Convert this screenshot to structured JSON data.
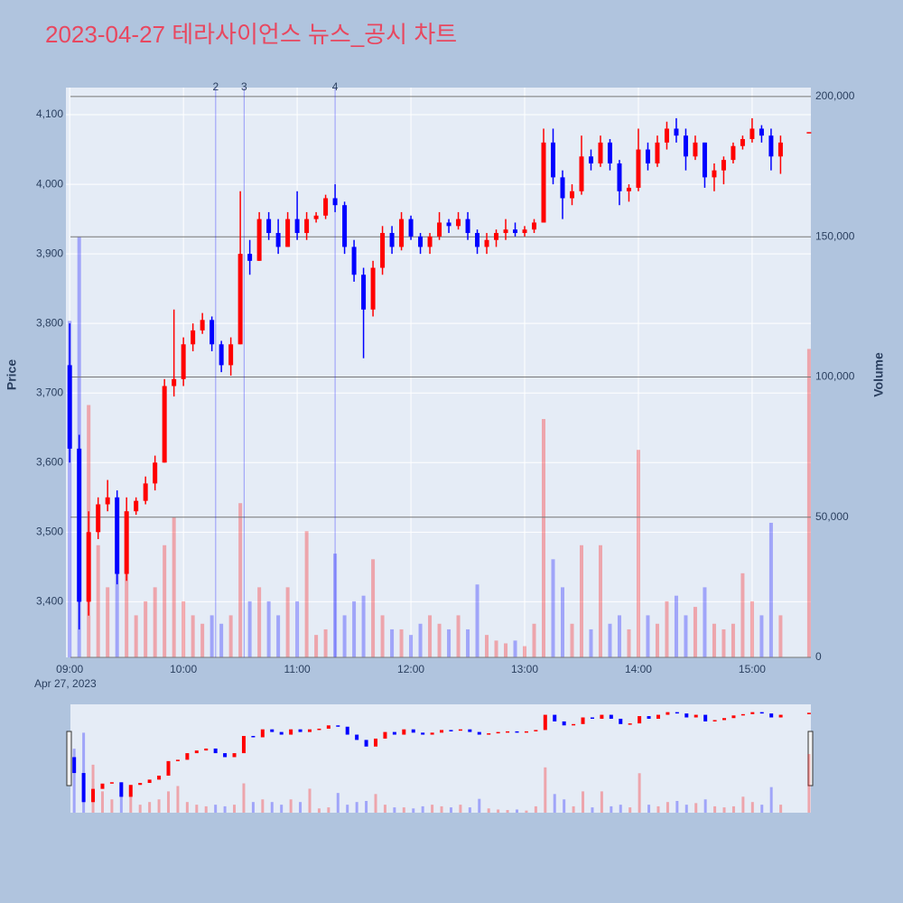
{
  "chart_data": {
    "type": "candlestick",
    "title": "2023-04-27 테라사이언스 뉴스_공시 차트",
    "y_label": "Price",
    "y2_label": "Volume",
    "date": "Apr 27, 2023",
    "increasing_color": "#ff0000",
    "decreasing_color": "#0000ff",
    "increasing_volume_color": "rgba(255,0,0,0.3)",
    "decreasing_volume_color": "rgba(0,0,255,0.3)",
    "x": [
      "09:00",
      "09:05",
      "09:10",
      "09:15",
      "09:20",
      "09:25",
      "09:30",
      "09:35",
      "09:40",
      "09:45",
      "09:50",
      "09:55",
      "10:00",
      "10:05",
      "10:10",
      "10:15",
      "10:20",
      "10:25",
      "10:30",
      "10:35",
      "10:40",
      "10:45",
      "10:50",
      "10:55",
      "11:00",
      "11:05",
      "11:10",
      "11:15",
      "11:20",
      "11:25",
      "11:30",
      "11:35",
      "11:40",
      "11:45",
      "11:50",
      "11:55",
      "12:00",
      "12:05",
      "12:10",
      "12:15",
      "12:20",
      "12:25",
      "12:30",
      "12:35",
      "12:40",
      "12:45",
      "12:50",
      "12:55",
      "13:00",
      "13:05",
      "13:10",
      "13:15",
      "13:20",
      "13:25",
      "13:30",
      "13:35",
      "13:40",
      "13:45",
      "13:50",
      "13:55",
      "14:00",
      "14:05",
      "14:10",
      "14:15",
      "14:20",
      "14:25",
      "14:30",
      "14:35",
      "14:40",
      "14:45",
      "14:50",
      "14:55",
      "15:00",
      "15:05",
      "15:10",
      "15:15",
      "15:30"
    ],
    "open": [
      3740,
      3620,
      3400,
      3500,
      3540,
      3550,
      3440,
      3530,
      3545,
      3570,
      3600,
      3710,
      3720,
      3770,
      3790,
      3805,
      3770,
      3740,
      3770,
      3900,
      3890,
      3950,
      3930,
      3910,
      3950,
      3930,
      3950,
      3955,
      3980,
      3970,
      3910,
      3870,
      3820,
      3880,
      3930,
      3910,
      3950,
      3925,
      3910,
      3925,
      3945,
      3940,
      3950,
      3930,
      3910,
      3920,
      3930,
      3935,
      3930,
      3935,
      3945,
      4060,
      4010,
      3980,
      3990,
      4040,
      4030,
      4060,
      4030,
      3990,
      3995,
      4050,
      4030,
      4060,
      4080,
      4070,
      4040,
      4060,
      4010,
      4020,
      4035,
      4055,
      4065,
      4080,
      4070,
      4040,
      4075
    ],
    "high": [
      3800,
      3640,
      3530,
      3550,
      3575,
      3560,
      3550,
      3550,
      3580,
      3610,
      3720,
      3820,
      3780,
      3800,
      3815,
      3810,
      3775,
      3780,
      3990,
      3920,
      3960,
      3960,
      3950,
      3960,
      3990,
      3960,
      3960,
      3985,
      4000,
      3975,
      3920,
      3880,
      3890,
      3940,
      3940,
      3960,
      3955,
      3930,
      3930,
      3960,
      3950,
      3960,
      3960,
      3935,
      3930,
      3935,
      3950,
      3945,
      3940,
      3950,
      4080,
      4080,
      4020,
      4000,
      4070,
      4050,
      4070,
      4065,
      4035,
      4000,
      4080,
      4060,
      4070,
      4090,
      4095,
      4080,
      4070,
      4060,
      4030,
      4040,
      4060,
      4070,
      4095,
      4085,
      4080,
      4070,
      4075
    ],
    "low": [
      3600,
      3360,
      3380,
      3490,
      3530,
      3425,
      3430,
      3525,
      3540,
      3560,
      3600,
      3695,
      3710,
      3760,
      3785,
      3760,
      3730,
      3725,
      3770,
      3870,
      3890,
      3920,
      3900,
      3910,
      3920,
      3920,
      3945,
      3950,
      3960,
      3900,
      3860,
      3750,
      3810,
      3870,
      3900,
      3905,
      3920,
      3900,
      3900,
      3920,
      3930,
      3935,
      3920,
      3900,
      3900,
      3910,
      3920,
      3925,
      3925,
      3930,
      3945,
      4000,
      3950,
      3970,
      3985,
      4020,
      4025,
      4020,
      3970,
      3975,
      3990,
      4020,
      4025,
      4050,
      4060,
      4020,
      4035,
      3995,
      3990,
      4000,
      4030,
      4050,
      4060,
      4060,
      4020,
      4015,
      4075
    ],
    "close": [
      3620,
      3400,
      3500,
      3540,
      3550,
      3440,
      3530,
      3545,
      3570,
      3600,
      3710,
      3720,
      3770,
      3790,
      3805,
      3770,
      3740,
      3770,
      3900,
      3890,
      3950,
      3930,
      3910,
      3950,
      3930,
      3950,
      3955,
      3980,
      3970,
      3910,
      3870,
      3820,
      3880,
      3930,
      3910,
      3950,
      3925,
      3910,
      3925,
      3945,
      3940,
      3950,
      3930,
      3910,
      3920,
      3930,
      3935,
      3930,
      3935,
      3945,
      4060,
      4010,
      3980,
      3990,
      4040,
      4030,
      4060,
      4030,
      3990,
      3995,
      4050,
      4030,
      4060,
      4080,
      4070,
      4040,
      4060,
      4010,
      4020,
      4035,
      4055,
      4065,
      4080,
      4070,
      4040,
      4060,
      4075
    ],
    "volume": [
      120000,
      150000,
      90000,
      40000,
      25000,
      40000,
      30000,
      15000,
      20000,
      25000,
      40000,
      50000,
      20000,
      15000,
      12000,
      15000,
      12000,
      15000,
      55000,
      20000,
      25000,
      20000,
      15000,
      25000,
      20000,
      45000,
      8000,
      10000,
      37000,
      15000,
      20000,
      22000,
      35000,
      15000,
      10000,
      10000,
      8000,
      12000,
      15000,
      12000,
      10000,
      15000,
      10000,
      26000,
      8000,
      6000,
      5000,
      6000,
      4000,
      12000,
      85000,
      35000,
      25000,
      12000,
      40000,
      10000,
      40000,
      12000,
      15000,
      10000,
      74000,
      15000,
      12000,
      20000,
      22000,
      15000,
      18000,
      25000,
      12000,
      10000,
      12000,
      30000,
      20000,
      15000,
      48000,
      15000,
      110000
    ],
    "xlim": [
      "08:58",
      "15:31"
    ],
    "xticks": [
      "09:00",
      "10:00",
      "11:00",
      "12:00",
      "13:00",
      "14:00",
      "15:00"
    ],
    "ylim": [
      3320,
      4139
    ],
    "yticks": [
      {
        "value": 3400,
        "label": "3,400"
      },
      {
        "value": 3500,
        "label": "3,500"
      },
      {
        "value": 3600,
        "label": "3,600"
      },
      {
        "value": 3700,
        "label": "3,700"
      },
      {
        "value": 3800,
        "label": "3,800"
      },
      {
        "value": 3900,
        "label": "3,900"
      },
      {
        "value": 4000,
        "label": "4,000"
      },
      {
        "value": 4100,
        "label": "4,100"
      }
    ],
    "y2lim": [
      0,
      203200
    ],
    "y2ticks": [
      0,
      {
        "value": 50000,
        "label": "50,000"
      },
      {
        "value": 100000,
        "label": "100,000"
      },
      {
        "value": 150000,
        "label": "150,000"
      },
      {
        "value": 200000,
        "label": "200,000"
      }
    ],
    "annotations": [
      {
        "x": "10:17",
        "text": "2"
      },
      {
        "x": "10:32",
        "text": "3"
      },
      {
        "x": "11:20",
        "text": "4"
      }
    ],
    "grid": true,
    "rangeslider": true
  }
}
